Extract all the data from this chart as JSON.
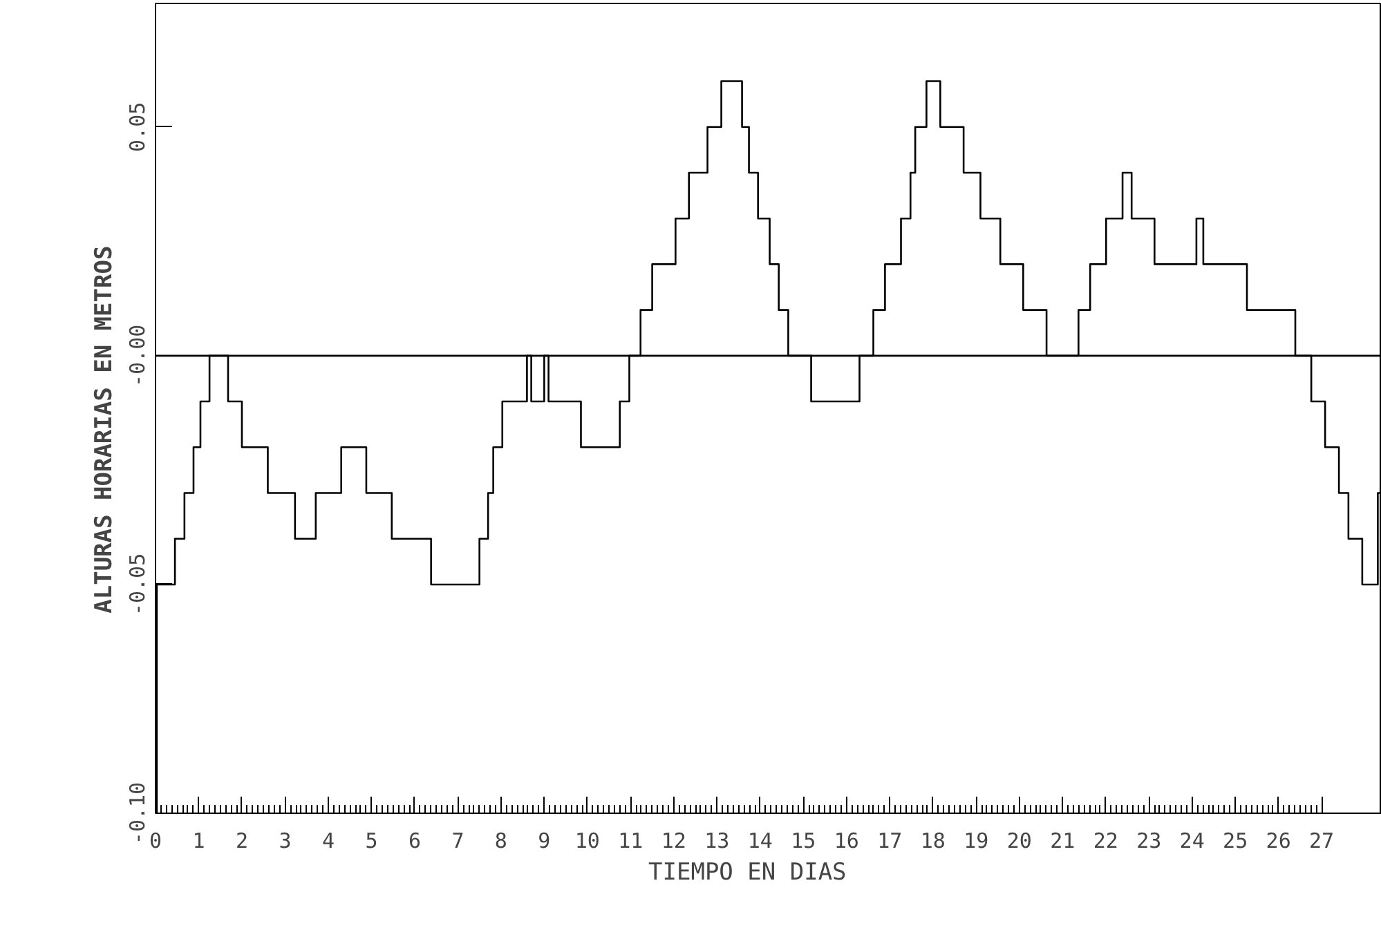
{
  "chart_data": {
    "type": "step",
    "xlabel": "TIEMPO    EN DIAS",
    "ylabel": "ALTURAS  HORARIAS  EN  METROS",
    "x": [
      0,
      0.03,
      0.45,
      0.67,
      0.88,
      1.04,
      1.25,
      1.68,
      2.0,
      2.6,
      3.23,
      3.71,
      4.3,
      4.88,
      5.47,
      6.38,
      7.5,
      7.7,
      7.82,
      8.03,
      8.6,
      8.7,
      9.0,
      9.1,
      9.85,
      10.75,
      10.97,
      11.23,
      11.5,
      12.04,
      12.35,
      12.78,
      13.1,
      13.58,
      13.74,
      13.95,
      14.22,
      14.43,
      14.65,
      15.18,
      16.3,
      16.62,
      16.89,
      17.26,
      17.48,
      17.59,
      17.85,
      18.17,
      18.71,
      19.1,
      19.56,
      20.09,
      20.63,
      21.37,
      21.64,
      22.01,
      22.39,
      22.6,
      23.13,
      24.1,
      24.26,
      25.27,
      26.39,
      26.76,
      27.08,
      27.4,
      27.62,
      27.94,
      28.3,
      28.35
    ],
    "values": [
      -0.1,
      -0.05,
      -0.04,
      -0.03,
      -0.02,
      -0.01,
      0,
      -0.01,
      -0.02,
      -0.03,
      -0.04,
      -0.03,
      -0.02,
      -0.03,
      -0.04,
      -0.05,
      -0.04,
      -0.03,
      -0.02,
      -0.01,
      0,
      -0.01,
      0,
      -0.01,
      -0.02,
      -0.01,
      0,
      0.01,
      0.02,
      0.03,
      0.04,
      0.05,
      0.06,
      0.05,
      0.04,
      0.03,
      0.02,
      0.01,
      0,
      -0.01,
      0,
      0.01,
      0.02,
      0.03,
      0.04,
      0.05,
      0.06,
      0.05,
      0.04,
      0.03,
      0.02,
      0.01,
      0,
      0.01,
      0.02,
      0.03,
      0.04,
      0.03,
      0.02,
      0.03,
      0.02,
      0.01,
      0,
      -0.01,
      -0.02,
      -0.03,
      -0.04,
      -0.05,
      -0.03,
      -0.03
    ],
    "color": "#000000",
    "xlim": [
      0,
      28.39
    ],
    "ylim": [
      -0.1,
      0.077
    ],
    "xticks": [
      {
        "value": 0,
        "label": "0"
      },
      1,
      2,
      3,
      4,
      5,
      6,
      7,
      8,
      9,
      10,
      11,
      12,
      13,
      14,
      15,
      16,
      17,
      18,
      19,
      20,
      21,
      22,
      23,
      24,
      25,
      26,
      27
    ],
    "yticks": [
      {
        "value": -0.1,
        "label": "-0.10"
      },
      {
        "value": -0.05,
        "label": "-0.05"
      },
      {
        "value": 0,
        "label": "-0.00"
      },
      {
        "value": 0.05,
        "label": "0.05"
      }
    ],
    "ref_lines": [
      {
        "axis": "y",
        "value": 0,
        "color": "#000000"
      }
    ],
    "grid": false
  }
}
